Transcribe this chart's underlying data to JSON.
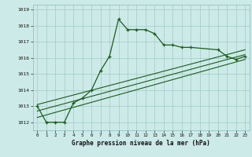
{
  "xlabel": "Graphe pression niveau de la mer (hPa)",
  "bg_color": "#cceae8",
  "grid_color": "#aacfcc",
  "line_color": "#1a5c1a",
  "ylim": [
    1011.5,
    1019.3
  ],
  "xlim": [
    -0.5,
    23.5
  ],
  "yticks": [
    1012,
    1013,
    1014,
    1015,
    1016,
    1017,
    1018,
    1019
  ],
  "xticks": [
    0,
    1,
    2,
    3,
    4,
    5,
    6,
    7,
    8,
    9,
    10,
    11,
    12,
    13,
    14,
    15,
    16,
    17,
    18,
    19,
    20,
    21,
    22,
    23
  ],
  "main_line": {
    "x": [
      0,
      1,
      2,
      3,
      4,
      5,
      6,
      7,
      8,
      9,
      10,
      11,
      12,
      13,
      14,
      15,
      16,
      17,
      20,
      21,
      22,
      23
    ],
    "y": [
      1013.0,
      1012.0,
      1012.0,
      1012.0,
      1013.2,
      1013.5,
      1014.0,
      1015.2,
      1016.1,
      1018.4,
      1017.75,
      1017.75,
      1017.75,
      1017.5,
      1016.8,
      1016.8,
      1016.65,
      1016.65,
      1016.5,
      1016.1,
      1015.9,
      1016.1
    ]
  },
  "trend_line1": {
    "x": [
      0,
      23
    ],
    "y": [
      1012.3,
      1015.9
    ]
  },
  "trend_line2": {
    "x": [
      0,
      23
    ],
    "y": [
      1012.7,
      1016.2
    ]
  },
  "trend_line3": {
    "x": [
      0,
      23
    ],
    "y": [
      1013.1,
      1016.5
    ]
  }
}
